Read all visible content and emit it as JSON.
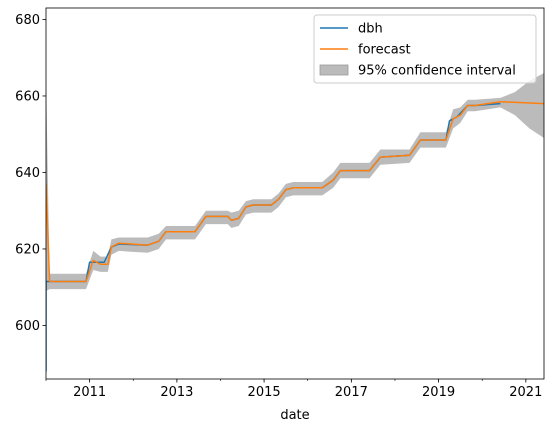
{
  "chart_data": {
    "type": "line",
    "title": "",
    "xlabel": "date",
    "ylabel": "",
    "x_range": [
      "2010-01",
      "2021-06"
    ],
    "ylim": [
      586,
      683
    ],
    "y_ticks": [
      600,
      620,
      640,
      660,
      680
    ],
    "x_ticks": [
      {
        "date": "2011-01",
        "label": "2011"
      },
      {
        "date": "2013-01",
        "label": "2013"
      },
      {
        "date": "2015-01",
        "label": "2015"
      },
      {
        "date": "2017-01",
        "label": "2017"
      },
      {
        "date": "2019-01",
        "label": "2019"
      },
      {
        "date": "2021-01",
        "label": "2021"
      }
    ],
    "grid": false,
    "legend_position": "top-right",
    "colors": {
      "dbh": "#1f77b4",
      "forecast": "#ff7f0e",
      "ci": "#bbbbbb"
    },
    "series": [
      {
        "name": "dbh",
        "points": [
          [
            "2010-01",
            588
          ],
          [
            "2010-01",
            611.5
          ],
          [
            "2010-12",
            611.5
          ],
          [
            "2011-01",
            616.5
          ],
          [
            "2011-05",
            616.5
          ],
          [
            "2011-07",
            620.5
          ],
          [
            "2011-09",
            621.3
          ],
          [
            "2012-05",
            621
          ],
          [
            "2012-08",
            622
          ],
          [
            "2012-10",
            624.5
          ],
          [
            "2013-06",
            624.5
          ],
          [
            "2013-09",
            628.5
          ],
          [
            "2014-03",
            628.5
          ],
          [
            "2014-04",
            627.5
          ],
          [
            "2014-06",
            628
          ],
          [
            "2014-08",
            631
          ],
          [
            "2014-10",
            631.5
          ],
          [
            "2015-03",
            631.5
          ],
          [
            "2015-05",
            633
          ],
          [
            "2015-07",
            635.5
          ],
          [
            "2015-09",
            636
          ],
          [
            "2016-05",
            636
          ],
          [
            "2016-08",
            638
          ],
          [
            "2016-10",
            640.5
          ],
          [
            "2017-06",
            640.5
          ],
          [
            "2017-09",
            644
          ],
          [
            "2018-05",
            644.5
          ],
          [
            "2018-08",
            648.5
          ],
          [
            "2019-03",
            648.5
          ],
          [
            "2019-04",
            653.5
          ],
          [
            "2019-06",
            654.5
          ],
          [
            "2019-09",
            657.5
          ],
          [
            "2019-11",
            657.5
          ],
          [
            "2020-06",
            658
          ]
        ]
      },
      {
        "name": "forecast",
        "points": [
          [
            "2010-01",
            637
          ],
          [
            "2010-02",
            611.5
          ],
          [
            "2010-12",
            611.5
          ],
          [
            "2011-02",
            617
          ],
          [
            "2011-04",
            616
          ],
          [
            "2011-06",
            616
          ],
          [
            "2011-07",
            620.5
          ],
          [
            "2011-09",
            621.5
          ],
          [
            "2012-05",
            621
          ],
          [
            "2012-08",
            622
          ],
          [
            "2012-10",
            624.5
          ],
          [
            "2013-06",
            624.5
          ],
          [
            "2013-09",
            628.5
          ],
          [
            "2014-03",
            628.5
          ],
          [
            "2014-04",
            627.5
          ],
          [
            "2014-06",
            628
          ],
          [
            "2014-08",
            631
          ],
          [
            "2014-10",
            631.5
          ],
          [
            "2015-03",
            631.5
          ],
          [
            "2015-05",
            633
          ],
          [
            "2015-07",
            635.5
          ],
          [
            "2015-09",
            636
          ],
          [
            "2016-05",
            636
          ],
          [
            "2016-08",
            638
          ],
          [
            "2016-10",
            640.5
          ],
          [
            "2017-06",
            640.5
          ],
          [
            "2017-09",
            644
          ],
          [
            "2018-05",
            644.5
          ],
          [
            "2018-08",
            648.5
          ],
          [
            "2019-03",
            648.5
          ],
          [
            "2019-05",
            654
          ],
          [
            "2019-07",
            655
          ],
          [
            "2019-09",
            657.5
          ],
          [
            "2019-11",
            657.5
          ],
          [
            "2020-06",
            658.5
          ],
          [
            "2021-06",
            658
          ]
        ]
      },
      {
        "name": "95% confidence interval",
        "upper": [
          [
            "2010-01",
            665
          ],
          [
            "2010-02",
            613.5
          ],
          [
            "2010-12",
            613.5
          ],
          [
            "2011-02",
            619.5
          ],
          [
            "2011-04",
            618
          ],
          [
            "2011-06",
            618
          ],
          [
            "2011-07",
            622.5
          ],
          [
            "2011-09",
            623
          ],
          [
            "2012-05",
            623
          ],
          [
            "2012-08",
            624
          ],
          [
            "2012-10",
            626
          ],
          [
            "2013-06",
            626
          ],
          [
            "2013-09",
            630
          ],
          [
            "2014-03",
            630
          ],
          [
            "2014-04",
            629.5
          ],
          [
            "2014-06",
            630
          ],
          [
            "2014-08",
            632.5
          ],
          [
            "2014-10",
            633
          ],
          [
            "2015-03",
            633
          ],
          [
            "2015-05",
            634.5
          ],
          [
            "2015-07",
            637
          ],
          [
            "2015-09",
            637.5
          ],
          [
            "2016-05",
            637.5
          ],
          [
            "2016-08",
            640
          ],
          [
            "2016-10",
            642.5
          ],
          [
            "2017-06",
            642.5
          ],
          [
            "2017-09",
            646
          ],
          [
            "2018-05",
            646
          ],
          [
            "2018-08",
            650.5
          ],
          [
            "2019-03",
            650.5
          ],
          [
            "2019-05",
            656.5
          ],
          [
            "2019-07",
            657
          ],
          [
            "2019-09",
            659
          ],
          [
            "2019-11",
            659
          ],
          [
            "2020-06",
            659.5
          ],
          [
            "2020-10",
            661
          ],
          [
            "2021-02",
            664
          ],
          [
            "2021-06",
            666
          ]
        ],
        "lower": [
          [
            "2010-01",
            609
          ],
          [
            "2010-02",
            609.5
          ],
          [
            "2010-12",
            609.5
          ],
          [
            "2011-02",
            614.5
          ],
          [
            "2011-04",
            614
          ],
          [
            "2011-06",
            614
          ],
          [
            "2011-07",
            618.5
          ],
          [
            "2011-09",
            619.5
          ],
          [
            "2012-05",
            619
          ],
          [
            "2012-08",
            620
          ],
          [
            "2012-10",
            622.5
          ],
          [
            "2013-06",
            622.5
          ],
          [
            "2013-09",
            626.5
          ],
          [
            "2014-03",
            626.5
          ],
          [
            "2014-04",
            625.5
          ],
          [
            "2014-06",
            626
          ],
          [
            "2014-08",
            629
          ],
          [
            "2014-10",
            629.5
          ],
          [
            "2015-03",
            629.5
          ],
          [
            "2015-05",
            631
          ],
          [
            "2015-07",
            633.5
          ],
          [
            "2015-09",
            634
          ],
          [
            "2016-05",
            634
          ],
          [
            "2016-08",
            636
          ],
          [
            "2016-10",
            638.5
          ],
          [
            "2017-06",
            638.5
          ],
          [
            "2017-09",
            642
          ],
          [
            "2018-05",
            642.5
          ],
          [
            "2018-08",
            646.5
          ],
          [
            "2019-03",
            646.5
          ],
          [
            "2019-05",
            651.5
          ],
          [
            "2019-07",
            653
          ],
          [
            "2019-09",
            656
          ],
          [
            "2019-11",
            656
          ],
          [
            "2020-06",
            657
          ],
          [
            "2020-10",
            655
          ],
          [
            "2021-02",
            651.5
          ],
          [
            "2021-06",
            649
          ]
        ]
      }
    ],
    "legend": [
      {
        "label": "dbh",
        "kind": "line",
        "color": "#1f77b4"
      },
      {
        "label": "forecast",
        "kind": "line",
        "color": "#ff7f0e"
      },
      {
        "label": "95% confidence interval",
        "kind": "patch",
        "color": "#bbbbbb"
      }
    ]
  }
}
